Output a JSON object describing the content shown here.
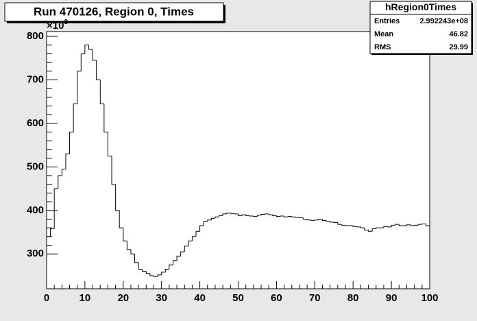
{
  "chart_data": {
    "type": "histogram",
    "title": "Run 470126, Region 0, Times",
    "y_multiplier": {
      "base": "×10",
      "exponent": "3"
    },
    "stats": {
      "title": "hRegion0Times",
      "rows": [
        [
          "Entries",
          "2.992243e+08"
        ],
        [
          "Mean",
          "46.82"
        ],
        [
          "RMS",
          "29.99"
        ]
      ]
    },
    "color": "#000000",
    "bins": [
      0,
      1,
      2,
      3,
      4,
      5,
      6,
      7,
      8,
      9,
      10,
      11,
      12,
      13,
      14,
      15,
      16,
      17,
      18,
      19,
      20,
      21,
      22,
      23,
      24,
      25,
      26,
      27,
      28,
      29,
      30,
      31,
      32,
      33,
      34,
      35,
      36,
      37,
      38,
      39,
      40,
      41,
      42,
      43,
      44,
      45,
      46,
      47,
      48,
      49,
      50,
      51,
      52,
      53,
      54,
      55,
      56,
      57,
      58,
      59,
      60,
      61,
      62,
      63,
      64,
      65,
      66,
      67,
      68,
      69,
      70,
      71,
      72,
      73,
      74,
      75,
      76,
      77,
      78,
      79,
      80,
      81,
      82,
      83,
      84,
      85,
      86,
      87,
      88,
      89,
      90,
      91,
      92,
      93,
      94,
      95,
      96,
      97,
      98,
      99,
      100
    ],
    "values": [
      340,
      358,
      450,
      480,
      495,
      530,
      580,
      645,
      720,
      760,
      780,
      770,
      745,
      700,
      645,
      580,
      525,
      460,
      400,
      360,
      330,
      310,
      300,
      280,
      265,
      260,
      255,
      250,
      248,
      252,
      258,
      265,
      275,
      285,
      295,
      305,
      318,
      330,
      340,
      352,
      365,
      375,
      378,
      382,
      385,
      388,
      392,
      394,
      393,
      392,
      388,
      390,
      388,
      387,
      386,
      389,
      391,
      392,
      390,
      388,
      386,
      387,
      385,
      386,
      385,
      384,
      383,
      380,
      378,
      377,
      378,
      380,
      377,
      375,
      373,
      372,
      368,
      366,
      365,
      365,
      363,
      362,
      360,
      355,
      352,
      358,
      360,
      360,
      363,
      362,
      366,
      368,
      365,
      365,
      367,
      365,
      366,
      368,
      369,
      365
    ],
    "xlim": [
      0,
      100
    ],
    "xticks": [
      0,
      10,
      20,
      30,
      40,
      50,
      60,
      70,
      80,
      90,
      100
    ],
    "ylim": [
      220,
      811
    ],
    "yticks": [
      300,
      400,
      500,
      600,
      700,
      800
    ]
  }
}
